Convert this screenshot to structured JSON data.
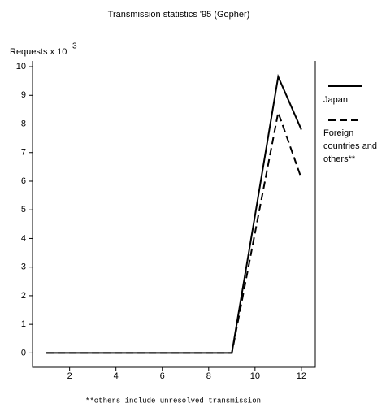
{
  "chart_data": {
    "type": "line",
    "title": "Transmission statistics '95 (Gopher)",
    "y_label": "Requests x 10",
    "y_label_exponent": "3",
    "x": [
      1,
      2,
      3,
      4,
      5,
      6,
      7,
      8,
      9,
      10,
      11,
      12
    ],
    "series": [
      {
        "name": "Japan",
        "color": "#000000",
        "dash": "solid",
        "values": [
          0,
          0,
          0,
          0,
          0,
          0,
          0,
          0,
          0,
          4.8,
          9.65,
          7.8
        ]
      },
      {
        "name": "Foreign countries and others**",
        "color": "#000000",
        "dash": "dashed",
        "values": [
          0,
          0,
          0,
          0,
          0,
          0,
          0,
          0,
          0,
          4.2,
          8.4,
          6.1
        ]
      }
    ],
    "xlim": [
      0.4,
      12.6
    ],
    "xticks": [
      2,
      4,
      6,
      8,
      10,
      12
    ],
    "ylim": [
      -0.5,
      10.2
    ],
    "yticks": [
      0,
      1,
      2,
      3,
      4,
      5,
      6,
      7,
      8,
      9,
      10
    ],
    "legend": "right",
    "footnote": "**others include unresolved transmission"
  }
}
